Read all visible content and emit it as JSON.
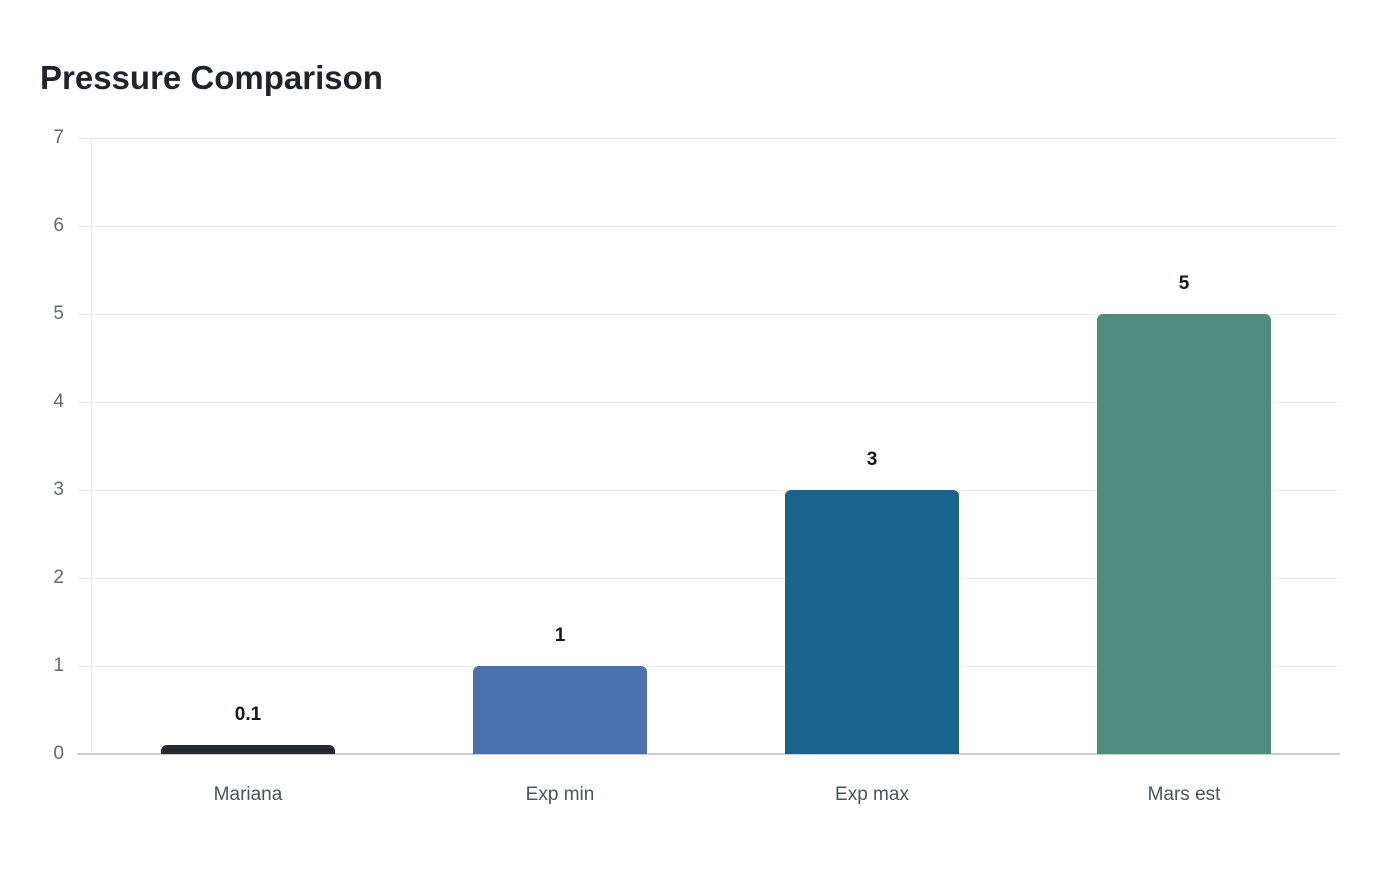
{
  "chart_data": {
    "type": "bar",
    "title": "Pressure Comparison",
    "categories": [
      "Mariana",
      "Exp min",
      "Exp max",
      "Mars est"
    ],
    "values": [
      0.1,
      1,
      3,
      5
    ],
    "value_labels": [
      "0.1",
      "1",
      "3",
      "5"
    ],
    "bar_colors": [
      "#25292d",
      "#4b72ae",
      "#17648d",
      "#4f8e7d"
    ],
    "ylim": [
      0,
      7
    ],
    "yticks": [
      0,
      1,
      2,
      3,
      4,
      5,
      6,
      7
    ],
    "ytick_labels": [
      "0",
      "1",
      "2",
      "3",
      "4",
      "5",
      "6",
      "7"
    ],
    "xlabel": "",
    "ylabel": "",
    "grid": true,
    "legend_position": "none"
  },
  "theme": {
    "background": "#ffffff",
    "title_color": "#1f242a",
    "grid_color": "#eaecee",
    "zero_line_color": "#c9ced3",
    "axis_dotted_color": "#d6dadd",
    "ytick_color": "#606a71",
    "xtick_color": "#4a545c",
    "value_label_color": "#14181c"
  }
}
